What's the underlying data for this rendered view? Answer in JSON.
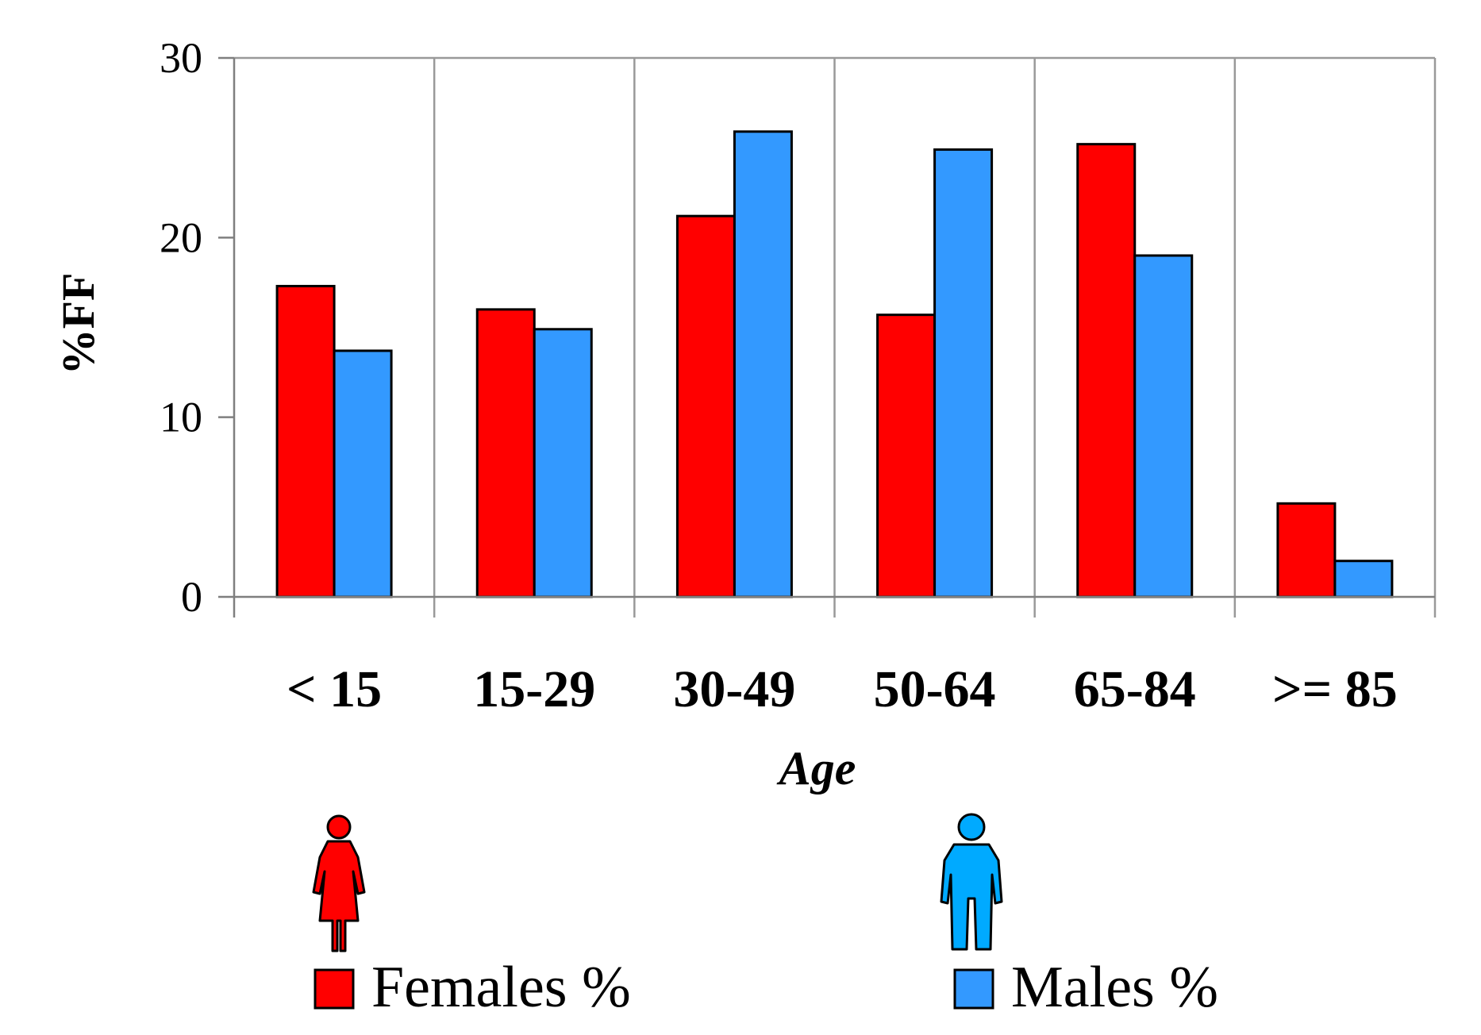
{
  "colors": {
    "females": "#ff0000",
    "males": "#3399ff",
    "female_icon": "#ff0000",
    "male_icon": "#00aaff",
    "grid": "#999999",
    "axis": "#7f7f7f",
    "bar_outline": "#000000"
  },
  "chart_data": {
    "type": "bar",
    "title": "",
    "xlabel": "Age",
    "ylabel": "%FF",
    "categories": [
      "< 15",
      "15-29",
      "30-49",
      "50-64",
      "65-84",
      ">= 85"
    ],
    "series": [
      {
        "name": "Females %",
        "values": [
          17.3,
          16.0,
          21.2,
          15.7,
          25.2,
          5.2
        ]
      },
      {
        "name": "Males %",
        "values": [
          13.7,
          14.9,
          25.9,
          24.9,
          19.0,
          2.0
        ]
      }
    ],
    "ylim": [
      0,
      30
    ],
    "yticks": [
      "0",
      "10",
      "20",
      "30"
    ],
    "grid": true,
    "legend_position": "bottom"
  },
  "legend": {
    "females_label": "Females %",
    "males_label": "Males %",
    "female_icon": "female-person-icon",
    "male_icon": "male-person-icon"
  }
}
